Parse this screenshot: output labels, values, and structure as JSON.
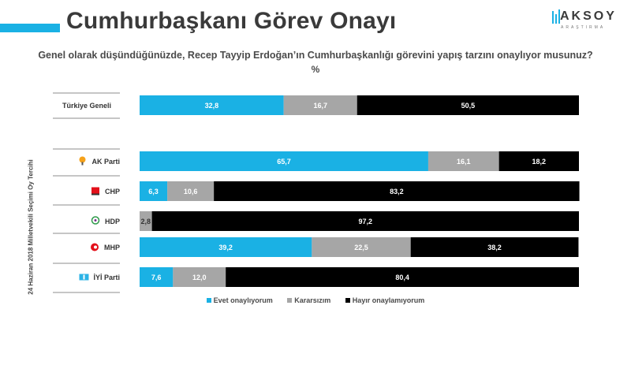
{
  "header": {
    "title": "Cumhurbaşkanı Görev Onayı",
    "logo_name": "AKSOY",
    "logo_sub": "ARAŞTIRMA"
  },
  "question": "Genel olarak düşündüğünüzde, Recep Tayyip Erdoğan’ın Cumhurbaşkanlığı görevini yapış tarzını onaylıyor musunuz?",
  "unit": "%",
  "side_label": "24 Haziran 2018 Milletvekili Seçimi Oy Tercihi",
  "colors": {
    "accent": "#1ab1e4",
    "evet": "#1ab1e4",
    "kararsiz": "#a6a6a6",
    "hayir": "#000000"
  },
  "chart_data": {
    "type": "bar",
    "orientation": "horizontal",
    "stacked": true,
    "categories": [
      "Türkiye Geneli",
      "AK Parti",
      "CHP",
      "HDP",
      "MHP",
      "İYİ Parti"
    ],
    "category_icons": [
      "",
      "akp-logo-icon",
      "chp-logo-icon",
      "hdp-logo-icon",
      "mhp-logo-icon",
      "iyi-logo-icon"
    ],
    "series": [
      {
        "name": "Evet onaylıyorum",
        "color": "#1ab1e4",
        "values": [
          32.8,
          65.7,
          6.3,
          0,
          39.2,
          7.6
        ],
        "labels": [
          "32,8",
          "65,7",
          "6,3",
          "",
          "39,2",
          "7,6"
        ]
      },
      {
        "name": "Kararsızım",
        "color": "#a6a6a6",
        "values": [
          16.7,
          16.1,
          10.6,
          2.8,
          22.5,
          12.0
        ],
        "labels": [
          "16,7",
          "16,1",
          "10,6",
          "2,8",
          "22,5",
          "12,0"
        ]
      },
      {
        "name": "Hayır onaylamıyorum",
        "color": "#000000",
        "values": [
          50.5,
          18.2,
          83.2,
          97.2,
          38.2,
          80.4
        ],
        "labels": [
          "50,5",
          "18,2",
          "83,2",
          "97,2",
          "38,2",
          "80,4"
        ]
      }
    ],
    "xlim": [
      0,
      100
    ],
    "legend": "bottom"
  }
}
